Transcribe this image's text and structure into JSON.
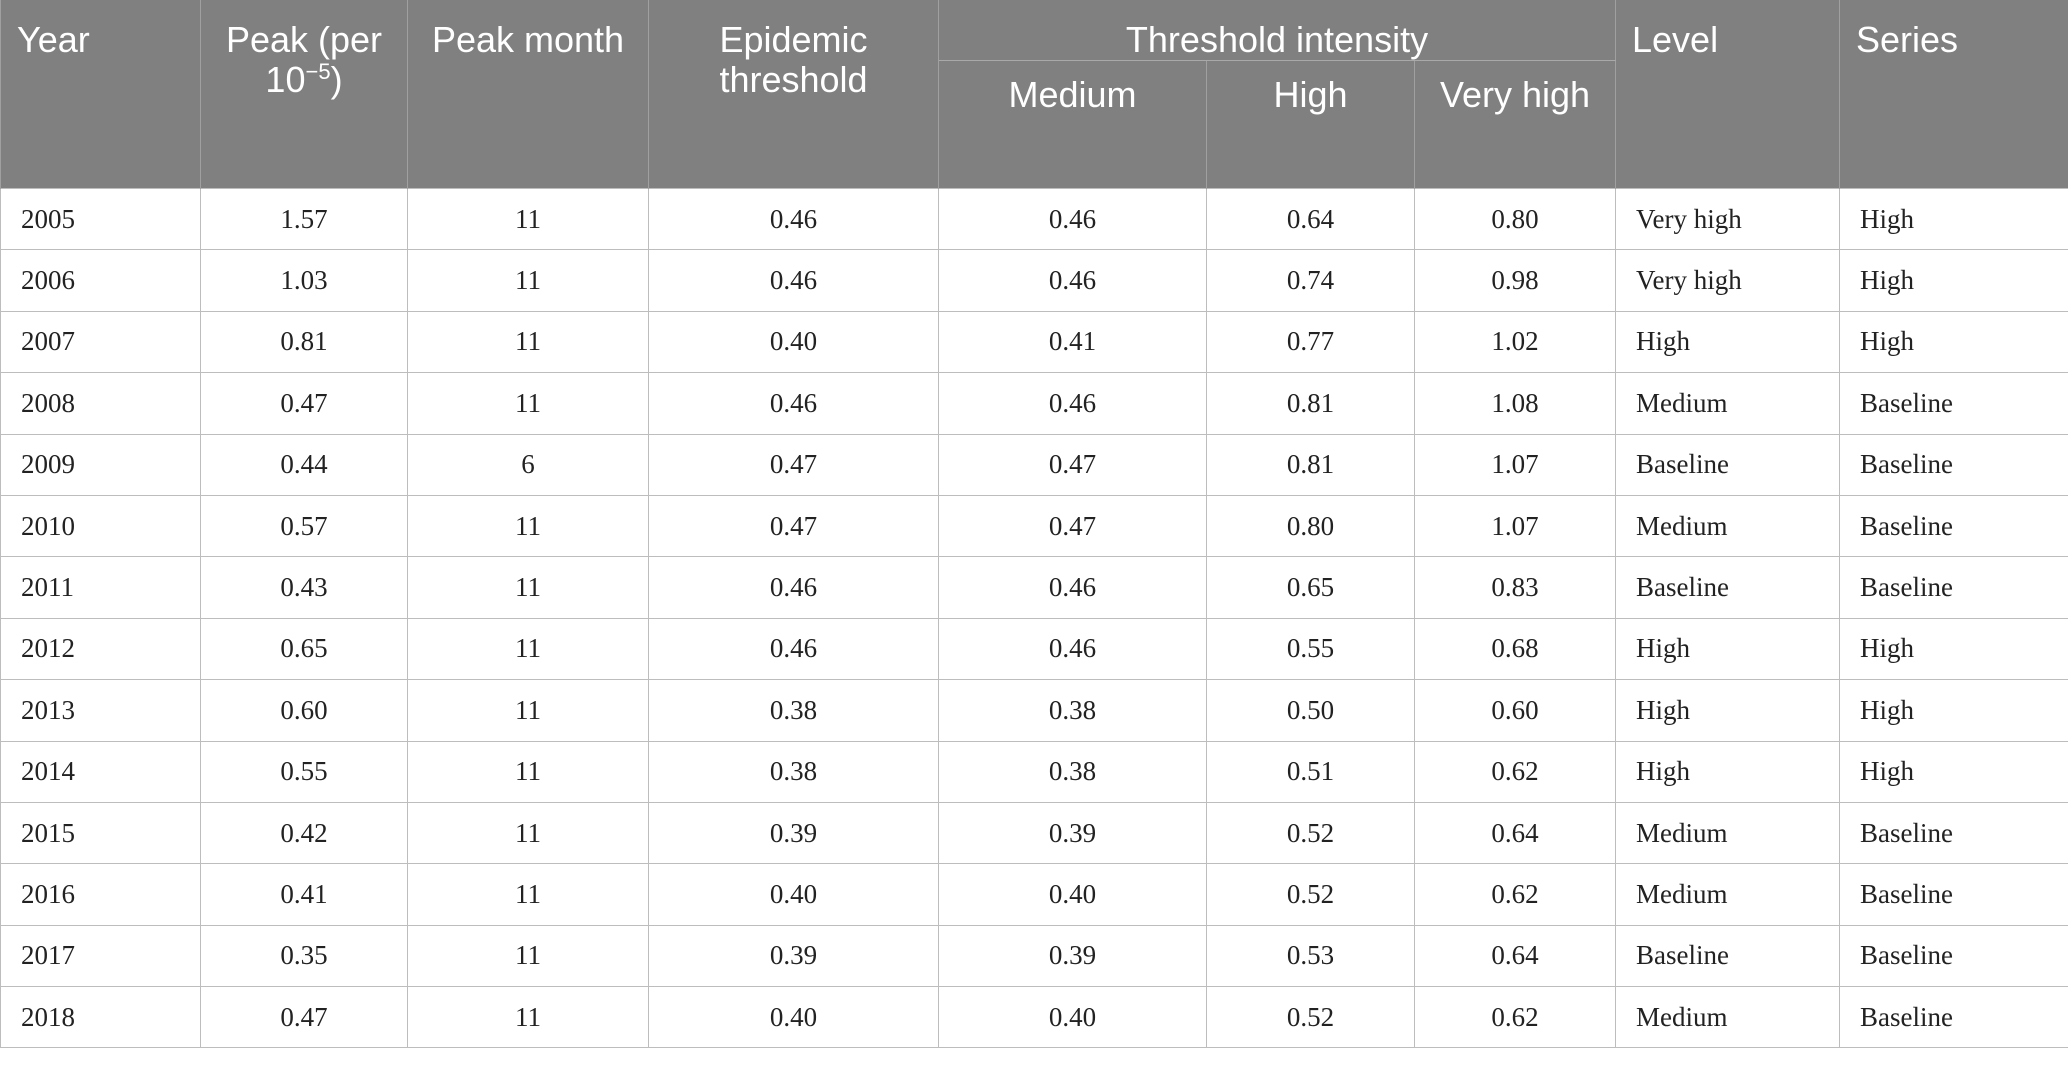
{
  "table": {
    "headers": {
      "year": "Year",
      "peak_main": "Peak (per 10",
      "peak_sup": "−5",
      "peak_close": ")",
      "peak_month": "Peak month",
      "epidemic_threshold": "Epidemic threshold",
      "threshold_intensity": "Threshold intensity",
      "medium": "Medium",
      "high": "High",
      "very_high": "Very high",
      "level": "Level",
      "series": "Series"
    },
    "rows": [
      {
        "year": "2005",
        "peak": "1.57",
        "month": "11",
        "epi": "0.46",
        "medium": "0.46",
        "high": "0.64",
        "very_high": "0.80",
        "level": "Very high",
        "series": "High"
      },
      {
        "year": "2006",
        "peak": "1.03",
        "month": "11",
        "epi": "0.46",
        "medium": "0.46",
        "high": "0.74",
        "very_high": "0.98",
        "level": "Very high",
        "series": "High"
      },
      {
        "year": "2007",
        "peak": "0.81",
        "month": "11",
        "epi": "0.40",
        "medium": "0.41",
        "high": "0.77",
        "very_high": "1.02",
        "level": "High",
        "series": "High"
      },
      {
        "year": "2008",
        "peak": "0.47",
        "month": "11",
        "epi": "0.46",
        "medium": "0.46",
        "high": "0.81",
        "very_high": "1.08",
        "level": "Medium",
        "series": "Baseline"
      },
      {
        "year": "2009",
        "peak": "0.44",
        "month": "6",
        "epi": "0.47",
        "medium": "0.47",
        "high": "0.81",
        "very_high": "1.07",
        "level": "Baseline",
        "series": "Baseline"
      },
      {
        "year": "2010",
        "peak": "0.57",
        "month": "11",
        "epi": "0.47",
        "medium": "0.47",
        "high": "0.80",
        "very_high": "1.07",
        "level": "Medium",
        "series": "Baseline"
      },
      {
        "year": "2011",
        "peak": "0.43",
        "month": "11",
        "epi": "0.46",
        "medium": "0.46",
        "high": "0.65",
        "very_high": "0.83",
        "level": "Baseline",
        "series": "Baseline"
      },
      {
        "year": "2012",
        "peak": "0.65",
        "month": "11",
        "epi": "0.46",
        "medium": "0.46",
        "high": "0.55",
        "very_high": "0.68",
        "level": "High",
        "series": "High"
      },
      {
        "year": "2013",
        "peak": "0.60",
        "month": "11",
        "epi": "0.38",
        "medium": "0.38",
        "high": "0.50",
        "very_high": "0.60",
        "level": "High",
        "series": "High"
      },
      {
        "year": "2014",
        "peak": "0.55",
        "month": "11",
        "epi": "0.38",
        "medium": "0.38",
        "high": "0.51",
        "very_high": "0.62",
        "level": "High",
        "series": "High"
      },
      {
        "year": "2015",
        "peak": "0.42",
        "month": "11",
        "epi": "0.39",
        "medium": "0.39",
        "high": "0.52",
        "very_high": "0.64",
        "level": "Medium",
        "series": "Baseline"
      },
      {
        "year": "2016",
        "peak": "0.41",
        "month": "11",
        "epi": "0.40",
        "medium": "0.40",
        "high": "0.52",
        "very_high": "0.62",
        "level": "Medium",
        "series": "Baseline"
      },
      {
        "year": "2017",
        "peak": "0.35",
        "month": "11",
        "epi": "0.39",
        "medium": "0.39",
        "high": "0.53",
        "very_high": "0.64",
        "level": "Baseline",
        "series": "Baseline"
      },
      {
        "year": "2018",
        "peak": "0.47",
        "month": "11",
        "epi": "0.40",
        "medium": "0.40",
        "high": "0.52",
        "very_high": "0.62",
        "level": "Medium",
        "series": "Baseline"
      }
    ]
  }
}
